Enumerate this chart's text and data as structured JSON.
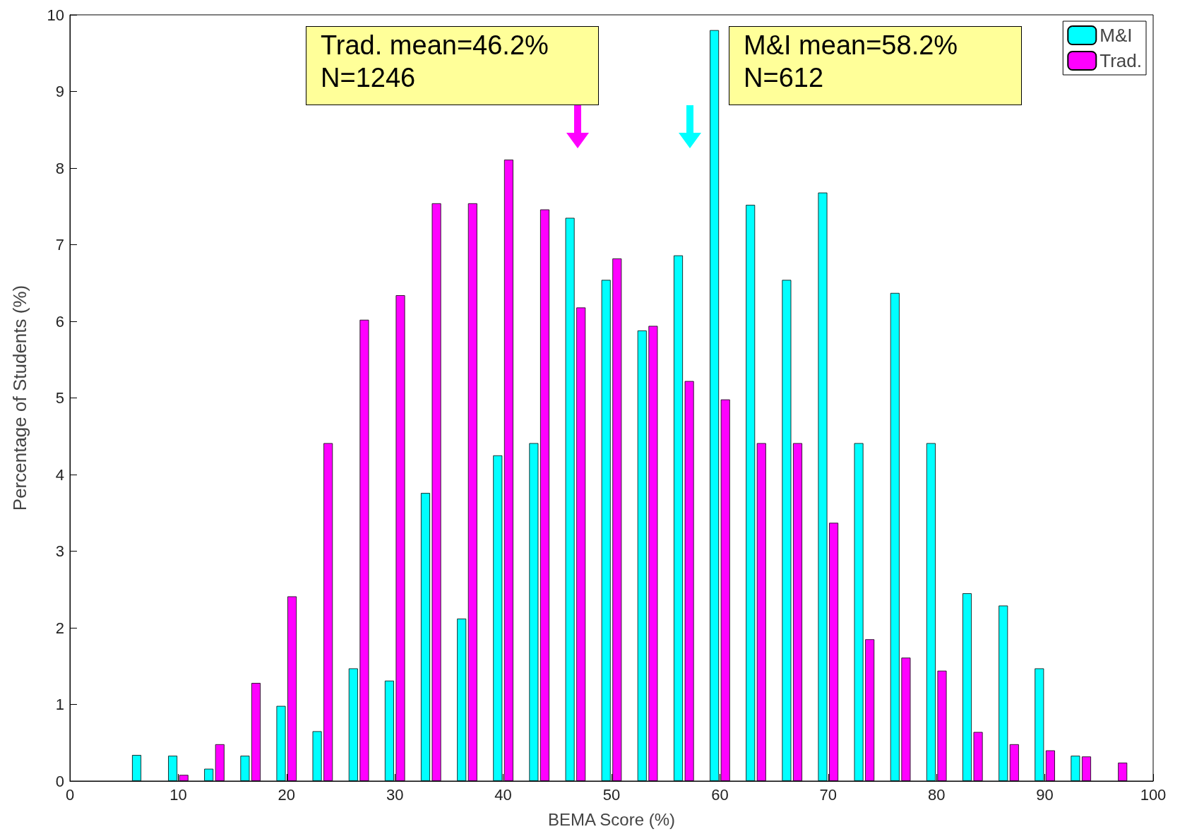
{
  "chart_data": {
    "type": "bar",
    "xlabel": "BEMA Score (%)",
    "ylabel": "Percentage of Students (%)",
    "x": [
      6.67,
      10,
      13.33,
      16.67,
      20,
      23.33,
      26.67,
      30,
      33.33,
      36.67,
      40,
      43.33,
      46.67,
      50,
      53.33,
      56.67,
      60,
      63.33,
      66.67,
      70,
      73.33,
      76.67,
      80,
      83.33,
      86.67,
      90,
      93.33,
      96.67
    ],
    "series": [
      {
        "name": "M&I",
        "color": "#00ffff",
        "values": [
          0.34,
          0.33,
          0.16,
          0.33,
          0.98,
          0.65,
          1.47,
          1.31,
          3.76,
          2.12,
          4.25,
          4.41,
          7.35,
          6.54,
          5.88,
          6.86,
          9.8,
          7.52,
          6.54,
          7.68,
          4.41,
          6.37,
          4.41,
          2.45,
          2.29,
          1.47,
          0.33,
          null
        ]
      },
      {
        "name": "Trad.",
        "color": "#ff00ff",
        "values": [
          null,
          0.08,
          0.48,
          1.28,
          2.41,
          4.41,
          6.02,
          6.34,
          7.54,
          7.54,
          8.11,
          7.46,
          6.18,
          6.82,
          5.94,
          5.22,
          4.98,
          4.41,
          4.41,
          3.37,
          1.85,
          1.61,
          1.44,
          0.64,
          0.48,
          0.4,
          0.32,
          0.24
        ]
      }
    ],
    "annotations": [
      "M&I mean=58.2%\nN=612",
      "Trad. mean=46.2%\nN=1246"
    ],
    "xlim": [
      0,
      100
    ],
    "xticks": [
      0,
      10,
      20,
      30,
      40,
      50,
      60,
      70,
      80,
      90,
      100
    ],
    "ylim": [
      0,
      10
    ],
    "yticks": [
      0,
      1,
      2,
      3,
      4,
      5,
      6,
      7,
      8,
      9,
      10
    ],
    "legend": "top right",
    "grid": false
  }
}
